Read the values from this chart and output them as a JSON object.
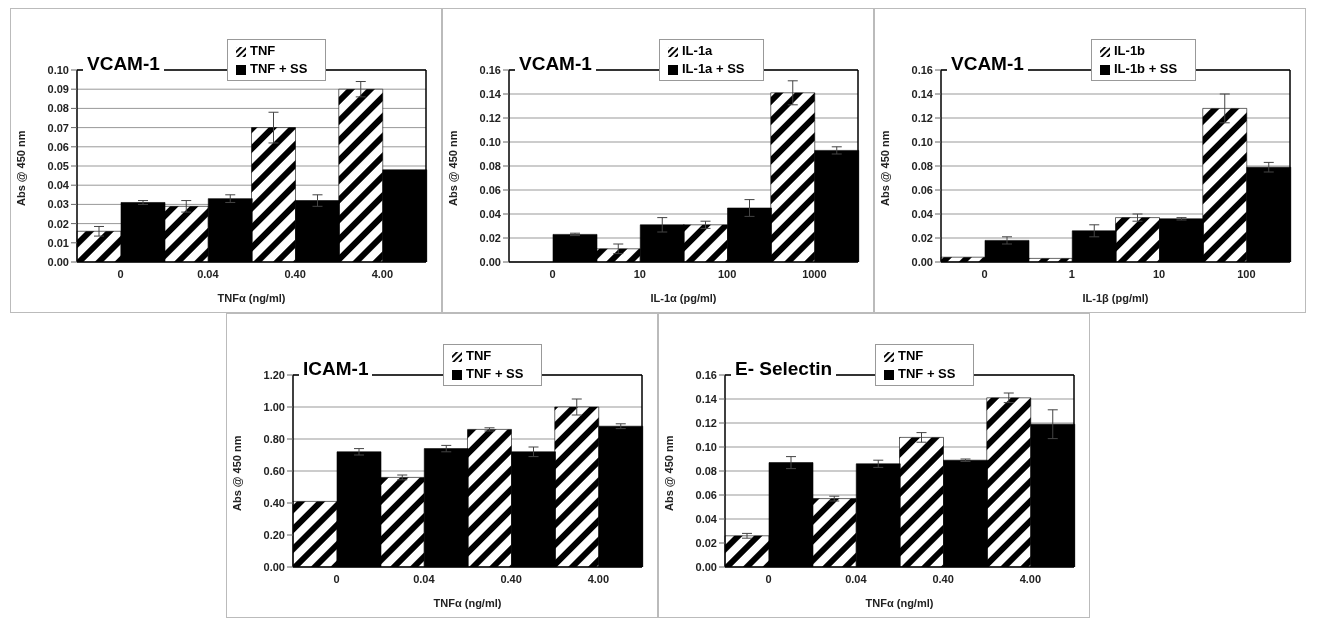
{
  "chart_data": [
    {
      "type": "bar",
      "title": "VCAM-1",
      "xlabel": "TNFα (ng/ml)",
      "ylabel": "Abs @ 450 nm",
      "categories": [
        "0",
        "0.04",
        "0.40",
        "4.00"
      ],
      "series": [
        {
          "name": "TNF",
          "color": "#000000",
          "values": [
            0.016,
            0.029,
            0.07,
            0.09
          ],
          "errors": [
            0.0025,
            0.003,
            0.008,
            0.004
          ]
        },
        {
          "name": "TNF + SS",
          "color": "#000000",
          "values": [
            0.031,
            0.033,
            0.032,
            0.048
          ],
          "errors": [
            0.001,
            0.002,
            0.003,
            null
          ]
        }
      ],
      "ylim": [
        0,
        0.1
      ],
      "yticks": [
        {
          "value": 0,
          "label": "0.00"
        },
        {
          "value": 0.01,
          "label": "0.01"
        },
        {
          "value": 0.02,
          "label": "0.02"
        },
        {
          "value": 0.03,
          "label": "0.03"
        },
        {
          "value": 0.04,
          "label": "0.04"
        },
        {
          "value": 0.05,
          "label": "0.05"
        },
        {
          "value": 0.06,
          "label": "0.06"
        },
        {
          "value": 0.07,
          "label": "0.07"
        },
        {
          "value": 0.08,
          "label": "0.08"
        },
        {
          "value": 0.09,
          "label": "0.09"
        },
        {
          "value": 0.1,
          "label": "0.10"
        }
      ],
      "grid": "y",
      "legend": "top"
    },
    {
      "type": "bar",
      "title": "VCAM-1",
      "xlabel": "IL-1α (pg/ml)",
      "ylabel": "Abs @ 450 nm",
      "categories": [
        "0",
        "10",
        "100",
        "1000"
      ],
      "series": [
        {
          "name": "IL-1a",
          "color": "#000000",
          "values": [
            0,
            0.011,
            0.031,
            0.141
          ],
          "errors": [
            null,
            0.004,
            0.003,
            0.01
          ]
        },
        {
          "name": "IL-1a + SS",
          "color": "#000000",
          "values": [
            0.023,
            0.031,
            0.045,
            0.093
          ],
          "errors": [
            0.001,
            0.006,
            0.007,
            0.003
          ]
        }
      ],
      "ylim": [
        0,
        0.16
      ],
      "yticks": [
        {
          "value": 0,
          "label": "0.00"
        },
        {
          "value": 0.02,
          "label": "0.02"
        },
        {
          "value": 0.04,
          "label": "0.04"
        },
        {
          "value": 0.06,
          "label": "0.06"
        },
        {
          "value": 0.08,
          "label": "0.08"
        },
        {
          "value": 0.1,
          "label": "0.10"
        },
        {
          "value": 0.12,
          "label": "0.12"
        },
        {
          "value": 0.14,
          "label": "0.14"
        },
        {
          "value": 0.16,
          "label": "0.16"
        }
      ],
      "grid": "y",
      "legend": "top"
    },
    {
      "type": "bar",
      "title": "VCAM-1",
      "xlabel": "IL-1β (pg/ml)",
      "ylabel": "Abs @ 450 nm",
      "categories": [
        "0",
        "1",
        "10",
        "100"
      ],
      "series": [
        {
          "name": "IL-1b",
          "color": "#000000",
          "values": [
            0.004,
            0.003,
            0.037,
            0.128
          ],
          "errors": [
            null,
            null,
            0.003,
            0.012
          ]
        },
        {
          "name": "IL-1b + SS",
          "color": "#000000",
          "values": [
            0.018,
            0.026,
            0.036,
            0.079
          ],
          "errors": [
            0.003,
            0.005,
            0.001,
            0.004
          ]
        }
      ],
      "ylim": [
        0,
        0.16
      ],
      "yticks": [
        {
          "value": 0,
          "label": "0.00"
        },
        {
          "value": 0.02,
          "label": "0.02"
        },
        {
          "value": 0.04,
          "label": "0.04"
        },
        {
          "value": 0.06,
          "label": "0.06"
        },
        {
          "value": 0.08,
          "label": "0.08"
        },
        {
          "value": 0.1,
          "label": "0.10"
        },
        {
          "value": 0.12,
          "label": "0.12"
        },
        {
          "value": 0.14,
          "label": "0.14"
        },
        {
          "value": 0.16,
          "label": "0.16"
        }
      ],
      "grid": "y",
      "legend": "top"
    },
    {
      "type": "bar",
      "title": "ICAM-1",
      "xlabel": "TNFα (ng/ml)",
      "ylabel": "Abs @ 450 nm",
      "categories": [
        "0",
        "0.04",
        "0.40",
        "4.00"
      ],
      "series": [
        {
          "name": "TNF",
          "color": "#000000",
          "values": [
            0.41,
            0.56,
            0.86,
            1.0
          ],
          "errors": [
            null,
            0.015,
            0.01,
            0.05
          ]
        },
        {
          "name": "TNF + SS",
          "color": "#000000",
          "values": [
            0.72,
            0.74,
            0.72,
            0.88
          ],
          "errors": [
            0.02,
            0.02,
            0.03,
            0.015
          ]
        }
      ],
      "ylim": [
        0,
        1.2
      ],
      "yticks": [
        {
          "value": 0,
          "label": "0.00"
        },
        {
          "value": 0.2,
          "label": "0.20"
        },
        {
          "value": 0.4,
          "label": "0.40"
        },
        {
          "value": 0.6,
          "label": "0.60"
        },
        {
          "value": 0.8,
          "label": "0.80"
        },
        {
          "value": 1,
          "label": "1.00"
        },
        {
          "value": 1.2,
          "label": "1.20"
        }
      ],
      "grid": "y",
      "legend": "top"
    },
    {
      "type": "bar",
      "title": "E- Selectin",
      "xlabel": "TNFα (ng/ml)",
      "ylabel": "Abs @ 450 nm",
      "categories": [
        "0",
        "0.04",
        "0.40",
        "4.00"
      ],
      "series": [
        {
          "name": "TNF",
          "color": "#000000",
          "values": [
            0.026,
            0.057,
            0.108,
            0.141
          ],
          "errors": [
            0.002,
            0.002,
            0.004,
            0.004
          ]
        },
        {
          "name": "TNF + SS",
          "color": "#000000",
          "values": [
            0.087,
            0.086,
            0.089,
            0.119
          ],
          "errors": [
            0.005,
            0.003,
            0.001,
            0.012
          ]
        }
      ],
      "ylim": [
        0,
        0.16
      ],
      "yticks": [
        {
          "value": 0,
          "label": "0.00"
        },
        {
          "value": 0.02,
          "label": "0.02"
        },
        {
          "value": 0.04,
          "label": "0.04"
        },
        {
          "value": 0.06,
          "label": "0.06"
        },
        {
          "value": 0.08,
          "label": "0.08"
        },
        {
          "value": 0.1,
          "label": "0.10"
        },
        {
          "value": 0.12,
          "label": "0.12"
        },
        {
          "value": 0.14,
          "label": "0.14"
        },
        {
          "value": 0.16,
          "label": "0.16"
        }
      ],
      "grid": "y",
      "legend": "top"
    }
  ]
}
